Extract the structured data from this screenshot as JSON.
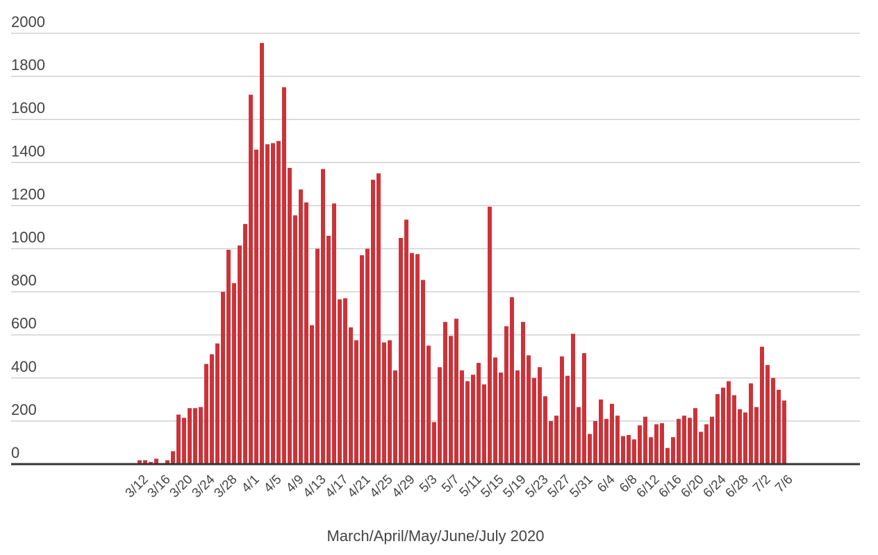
{
  "chart_data": {
    "type": "bar",
    "x_label": "March/April/May/June/July 2020",
    "categories": [
      "3/12",
      null,
      null,
      null,
      "3/16",
      null,
      null,
      null,
      "3/20",
      null,
      null,
      null,
      "3/24",
      null,
      null,
      null,
      "3/28",
      null,
      null,
      null,
      "4/1",
      null,
      null,
      null,
      "4/5",
      null,
      null,
      null,
      "4/9",
      null,
      null,
      null,
      "4/13",
      null,
      null,
      null,
      "4/17",
      null,
      null,
      null,
      "4/21",
      null,
      null,
      null,
      "4/25",
      null,
      null,
      null,
      "4/29",
      null,
      null,
      null,
      "5/3",
      null,
      null,
      null,
      "5/7",
      null,
      null,
      null,
      "5/11",
      null,
      null,
      null,
      "5/15",
      null,
      null,
      null,
      "5/19",
      null,
      null,
      null,
      "5/23",
      null,
      null,
      null,
      "5/27",
      null,
      null,
      null,
      "5/31",
      null,
      null,
      null,
      "6/4",
      null,
      null,
      null,
      "6/8",
      null,
      null,
      null,
      "6/12",
      null,
      null,
      null,
      "6/16",
      null,
      null,
      null,
      "6/20",
      null,
      null,
      null,
      "6/24",
      null,
      null,
      null,
      "6/28",
      null,
      null,
      null,
      "7/2",
      null,
      null,
      null,
      "7/6"
    ],
    "values": [
      18,
      18,
      10,
      25,
      0,
      18,
      60,
      230,
      215,
      260,
      260,
      265,
      465,
      510,
      560,
      800,
      995,
      840,
      1015,
      1115,
      1715,
      1460,
      1955,
      1485,
      1490,
      1500,
      1750,
      1375,
      1155,
      1275,
      1215,
      645,
      1000,
      1370,
      1060,
      1210,
      765,
      770,
      635,
      575,
      970,
      1000,
      1320,
      1350,
      565,
      575,
      435,
      1050,
      1135,
      980,
      975,
      855,
      550,
      195,
      450,
      660,
      595,
      675,
      435,
      385,
      415,
      470,
      370,
      1195,
      495,
      425,
      640,
      775,
      435,
      660,
      505,
      400,
      450,
      315,
      200,
      225,
      500,
      410,
      605,
      265,
      515,
      140,
      200,
      300,
      210,
      280,
      225,
      130,
      135,
      115,
      180,
      220,
      125,
      185,
      190,
      75,
      125,
      210,
      225,
      215,
      260,
      150,
      185,
      220,
      325,
      355,
      385,
      320,
      255,
      240,
      375,
      265,
      545,
      460,
      400,
      345,
      295
    ],
    "color": "#cc3339",
    "ylim": [
      0,
      2000
    ],
    "yticks": [
      0,
      200,
      400,
      600,
      800,
      1000,
      1200,
      1400,
      1600,
      1800,
      2000
    ],
    "grid": true
  }
}
